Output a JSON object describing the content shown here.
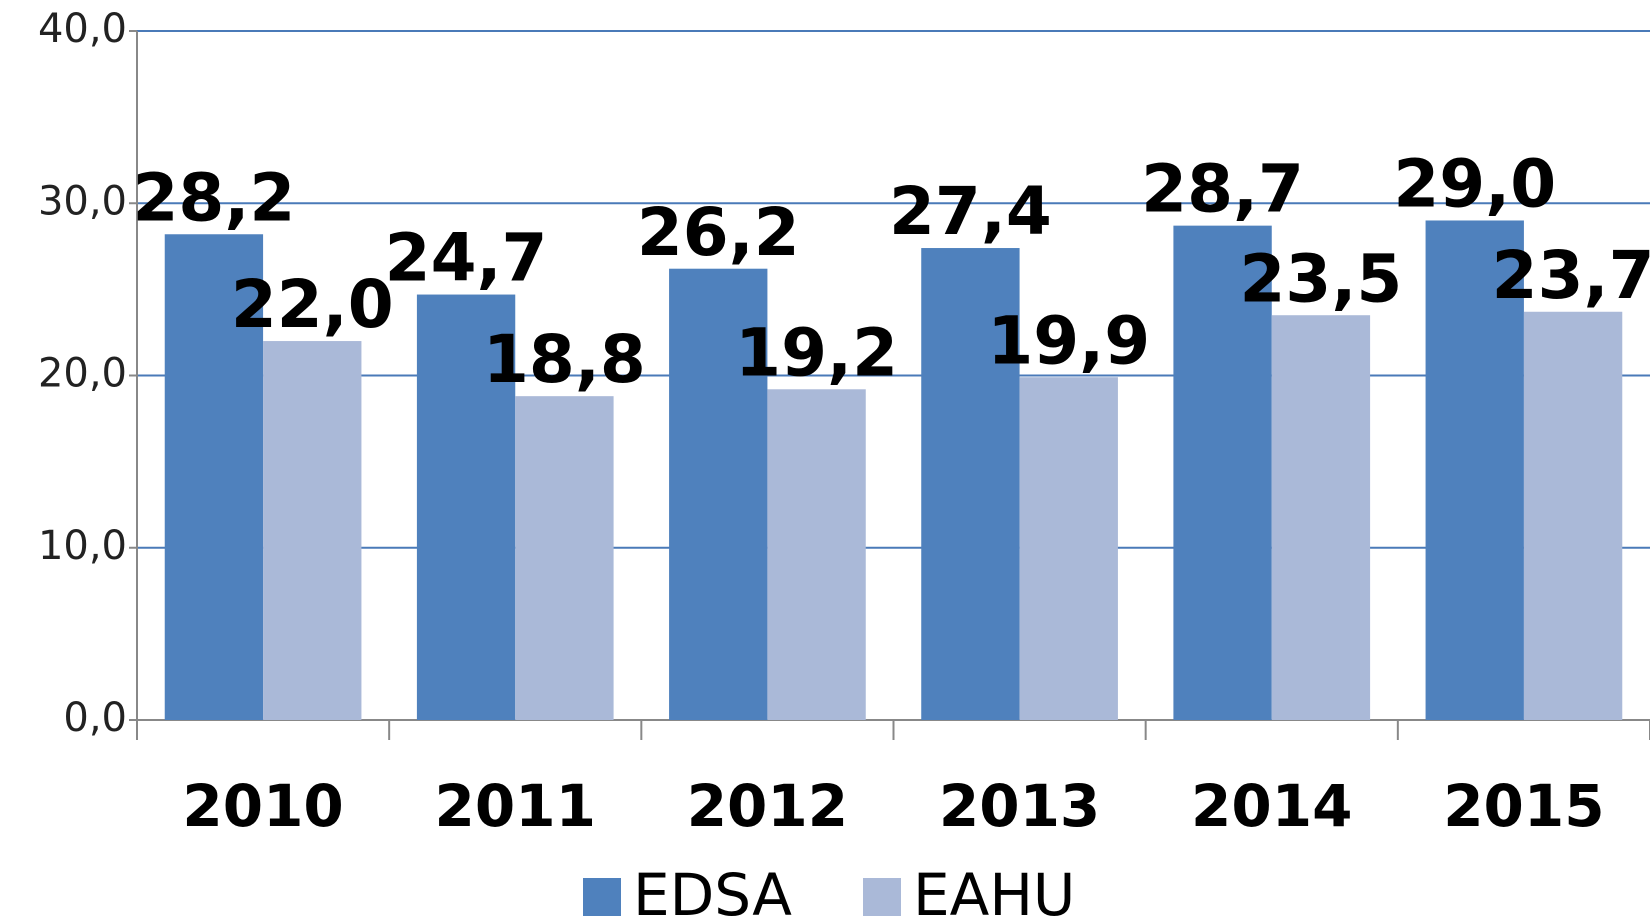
{
  "chart_data": {
    "type": "bar",
    "categories": [
      "2010",
      "2011",
      "2012",
      "2013",
      "2014",
      "2015"
    ],
    "series": [
      {
        "name": "EDSA",
        "color": "#4f81bd",
        "values": [
          28.2,
          24.7,
          26.2,
          27.4,
          28.7,
          29.0
        ],
        "value_labels": [
          "28,2",
          "24,7",
          "26,2",
          "27,4",
          "28,7",
          "29,0"
        ]
      },
      {
        "name": "EAHU",
        "color": "#aab9d8",
        "values": [
          22.0,
          18.8,
          19.2,
          19.9,
          23.5,
          23.7
        ],
        "value_labels": [
          "22,0",
          "18,8",
          "19,2",
          "19,9",
          "23,5",
          "23,7"
        ]
      }
    ],
    "ylim": [
      0,
      40
    ],
    "yticks": [
      {
        "value": 0,
        "label": "0,0"
      },
      {
        "value": 10,
        "label": "10,0"
      },
      {
        "value": 20,
        "label": "20,0"
      },
      {
        "value": 30,
        "label": "30,0"
      },
      {
        "value": 40,
        "label": "40,0"
      }
    ],
    "grid": true,
    "legend": "bottom"
  }
}
